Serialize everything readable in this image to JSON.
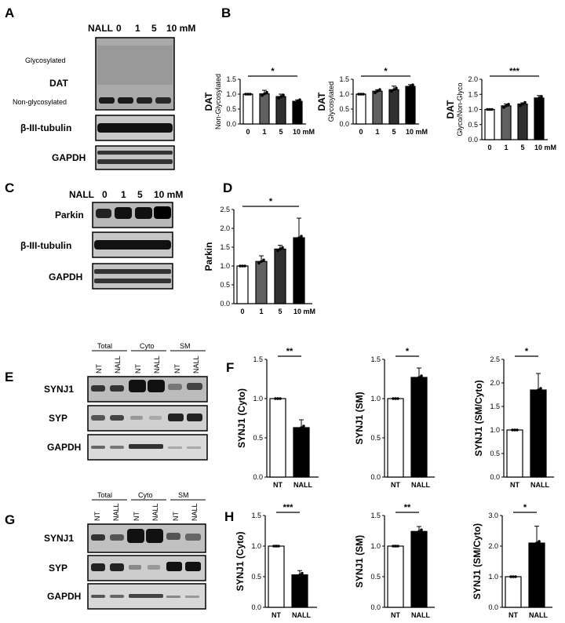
{
  "panels": {
    "a": {
      "letter": "A",
      "nall_label": "NALL",
      "lanes": [
        "0",
        "1",
        "5",
        "10 mM"
      ],
      "glyco_label": "Glycosylated",
      "dat_label": "DAT",
      "nonglyco_label": "Non-glycosylated",
      "tubulin_label": "β-III-tubulin",
      "gapdh_label": "GAPDH"
    },
    "b": {
      "letter": "B"
    },
    "c": {
      "letter": "C",
      "nall_label": "NALL",
      "lanes": [
        "0",
        "1",
        "5",
        "10 mM"
      ],
      "parkin_label": "Parkin",
      "tubulin_label": "β-III-tubulin",
      "gapdh_label": "GAPDH"
    },
    "d": {
      "letter": "D"
    },
    "e": {
      "letter": "E",
      "groups": [
        "Total",
        "Cyto",
        "SM"
      ],
      "lanes": [
        "NT",
        "NALL",
        "NT",
        "NALL",
        "NT",
        "NALL"
      ],
      "synj1_label": "SYNJ1",
      "syp_label": "SYP",
      "gapdh_label": "GAPDH"
    },
    "f": {
      "letter": "F"
    },
    "g": {
      "letter": "G",
      "groups": [
        "Total",
        "Cyto",
        "SM"
      ],
      "lanes": [
        "NT",
        "NALL",
        "NT",
        "NALL",
        "NT",
        "NALL"
      ],
      "synj1_label": "SYNJ1",
      "syp_label": "SYP",
      "gapdh_label": "GAPDH"
    },
    "h": {
      "letter": "H"
    }
  },
  "chart_data": [
    {
      "id": "b1",
      "type": "bar",
      "categories": [
        "0",
        "1",
        "5",
        "10 mM"
      ],
      "values": [
        1.0,
        1.01,
        0.92,
        0.76
      ],
      "errors": [
        0.0,
        0.12,
        0.08,
        0.05
      ],
      "ylabel_main": "DAT",
      "ylabel_sub": "Non-Glycosylated",
      "yticks": [
        "0.0",
        "0.5",
        "1.0",
        "1.5"
      ],
      "ylim": [
        0,
        1.5
      ],
      "significance": "*",
      "colors": [
        "#ffffff",
        "#606060",
        "#303030",
        "#000000"
      ]
    },
    {
      "id": "b2",
      "type": "bar",
      "categories": [
        "0",
        "1",
        "5",
        "10 mM"
      ],
      "values": [
        1.0,
        1.1,
        1.15,
        1.26
      ],
      "errors": [
        0.0,
        0.05,
        0.12,
        0.06
      ],
      "ylabel_main": "DAT",
      "ylabel_sub": "Glycosylated",
      "yticks": [
        "0.0",
        "0.5",
        "1.0",
        "1.5"
      ],
      "ylim": [
        0,
        1.5
      ],
      "significance": "*",
      "colors": [
        "#ffffff",
        "#606060",
        "#303030",
        "#000000"
      ]
    },
    {
      "id": "b3",
      "type": "bar",
      "categories": [
        "0",
        "1",
        "5",
        "10 mM"
      ],
      "values": [
        1.0,
        1.12,
        1.18,
        1.38
      ],
      "errors": [
        0.0,
        0.06,
        0.04,
        0.08
      ],
      "ylabel_main": "DAT",
      "ylabel_sub": "Glyco/Non-Glyco",
      "yticks": [
        "0.0",
        "0.5",
        "1.0",
        "1.5",
        "2.0"
      ],
      "ylim": [
        0,
        2.0
      ],
      "significance": "***",
      "colors": [
        "#ffffff",
        "#606060",
        "#303030",
        "#000000"
      ]
    },
    {
      "id": "d",
      "type": "bar",
      "categories": [
        "0",
        "1",
        "5",
        "10 mM"
      ],
      "values": [
        1.0,
        1.12,
        1.45,
        1.75
      ],
      "errors": [
        0.0,
        0.15,
        0.1,
        0.52
      ],
      "ylabel_main": "Parkin",
      "ylabel_sub": "",
      "yticks": [
        "0.0",
        "0.5",
        "1.0",
        "1.5",
        "2.0",
        "2.5"
      ],
      "ylim": [
        0,
        2.5
      ],
      "significance": "*",
      "colors": [
        "#ffffff",
        "#606060",
        "#303030",
        "#000000"
      ]
    },
    {
      "id": "f1",
      "type": "bar",
      "categories": [
        "NT",
        "NALL"
      ],
      "values": [
        1.0,
        0.63
      ],
      "errors": [
        0.0,
        0.1
      ],
      "ylabel_main": "SYNJ1 (Cyto)",
      "ylabel_sub": "",
      "yticks": [
        "0.0",
        "0.5",
        "1.0",
        "1.5"
      ],
      "ylim": [
        0,
        1.5
      ],
      "significance": "**",
      "colors": [
        "#ffffff",
        "#000000"
      ]
    },
    {
      "id": "f2",
      "type": "bar",
      "categories": [
        "NT",
        "NALL"
      ],
      "values": [
        1.0,
        1.27
      ],
      "errors": [
        0.0,
        0.12
      ],
      "ylabel_main": "SYNJ1 (SM)",
      "ylabel_sub": "",
      "yticks": [
        "0.0",
        "0.5",
        "1.0",
        "1.5"
      ],
      "ylim": [
        0,
        1.5
      ],
      "significance": "*",
      "colors": [
        "#ffffff",
        "#000000"
      ]
    },
    {
      "id": "f3",
      "type": "bar",
      "categories": [
        "NT",
        "NALL"
      ],
      "values": [
        1.0,
        1.85
      ],
      "errors": [
        0.0,
        0.35
      ],
      "ylabel_main": "SYNJ1 (SM/Cyto)",
      "ylabel_sub": "",
      "yticks": [
        "0.0",
        "0.5",
        "1.0",
        "1.5",
        "2.0",
        "2.5"
      ],
      "ylim": [
        0,
        2.5
      ],
      "significance": "*",
      "colors": [
        "#ffffff",
        "#000000"
      ]
    },
    {
      "id": "h1",
      "type": "bar",
      "categories": [
        "NT",
        "NALL"
      ],
      "values": [
        1.0,
        0.53
      ],
      "errors": [
        0.0,
        0.07
      ],
      "ylabel_main": "SYNJ1 (Cyto)",
      "ylabel_sub": "",
      "yticks": [
        "0.0",
        "0.5",
        "1.0",
        "1.5"
      ],
      "ylim": [
        0,
        1.5
      ],
      "significance": "***",
      "colors": [
        "#ffffff",
        "#000000"
      ]
    },
    {
      "id": "h2",
      "type": "bar",
      "categories": [
        "NT",
        "NALL"
      ],
      "values": [
        1.0,
        1.24
      ],
      "errors": [
        0.0,
        0.08
      ],
      "ylabel_main": "SYNJ1 (SM)",
      "ylabel_sub": "",
      "yticks": [
        "0.0",
        "0.5",
        "1.0",
        "1.5"
      ],
      "ylim": [
        0,
        1.5
      ],
      "significance": "**",
      "colors": [
        "#ffffff",
        "#000000"
      ]
    },
    {
      "id": "h3",
      "type": "bar",
      "categories": [
        "NT",
        "NALL"
      ],
      "values": [
        1.0,
        2.1
      ],
      "errors": [
        0.0,
        0.55
      ],
      "ylabel_main": "SYNJ1 (SM/Cyto)",
      "ylabel_sub": "",
      "yticks": [
        "0.0",
        "1.0",
        "2.0",
        "3.0"
      ],
      "ylim": [
        0,
        3.0
      ],
      "significance": "*",
      "colors": [
        "#ffffff",
        "#000000"
      ]
    }
  ]
}
